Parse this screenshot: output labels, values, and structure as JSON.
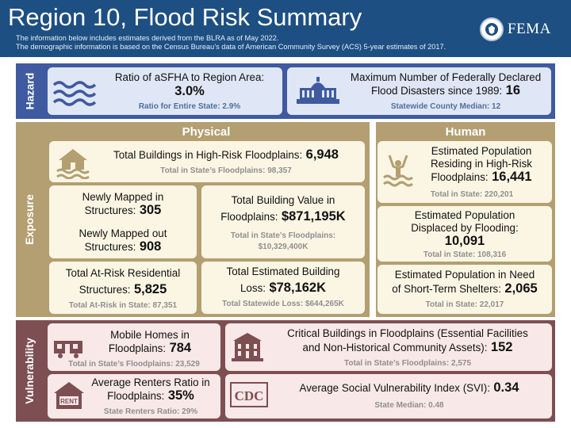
{
  "header": {
    "title": "Region 10, Flood Risk Summary",
    "note_1": "The information below includes estimates derived from the BLRA as of May 2022.",
    "note_2": "The demographic information is based on the Census Bureau’s data of American Community Survey (ACS) 5-year estimates of 2017.",
    "logo_text": "FEMA"
  },
  "hazard": {
    "label": "Hazard",
    "asfha": {
      "label": "Ratio of aSFHA to Region Area:",
      "value": "3.0%",
      "sub": "Ratio for Entire State: 2.9%"
    },
    "disasters": {
      "label_1": "Maximum Number of Federally Declared",
      "label_2": "Flood Disasters since 1989:",
      "value": "16",
      "sub": "Statewide County Median: 12"
    }
  },
  "exposure": {
    "label": "Exposure",
    "physical_heading": "Physical",
    "human_heading": "Human",
    "total_buildings": {
      "label": "Total Buildings in High-Risk Floodplains:",
      "value": "6,948",
      "sub": "Total in State’s Floodplains: 98,357"
    },
    "newly_mapped_in": {
      "label_1": "Newly Mapped in",
      "label_2": "Structures:",
      "value": "305"
    },
    "newly_mapped_out": {
      "label_1": "Newly Mapped out",
      "label_2": "Structures:",
      "value": "908"
    },
    "building_value": {
      "label_1": "Total Building Value in",
      "label_2": "Floodplains:",
      "value": "$871,195K",
      "sub_1": "Total in State’s Floodplains:",
      "sub_2": "$10,329,400K"
    },
    "at_risk_residential": {
      "label_1": "Total At-Risk Residential",
      "label_2": "Structures:",
      "value": "5,825",
      "sub": "Total At-Risk in State: 87,351"
    },
    "building_loss": {
      "label_1": "Total Estimated Building",
      "label_2": "Loss:",
      "value": "$78,162K",
      "sub": "Total Statewide Loss: $644,265K"
    },
    "pop_high_risk": {
      "label_1": "Estimated Population",
      "label_2": "Residing in High-Risk",
      "label_3": "Floodplains:",
      "value": "16,441",
      "sub": "Total in State: 220,201"
    },
    "pop_displaced": {
      "label_1": "Estimated Population",
      "label_2": "Displaced by Flooding:",
      "value": "10,091",
      "sub": "Total in State: 108,316"
    },
    "pop_shelters": {
      "label_1": "Estimated Population in Need",
      "label_2": "of Short-Term Shelters:",
      "value": "2,065",
      "sub": "Total in State: 22,017"
    }
  },
  "vulnerability": {
    "label": "Vulnerability",
    "mobile_homes": {
      "label_1": "Mobile Homes in",
      "label_2": "Floodplains:",
      "value": "784",
      "sub": "Total in State’s Floodplains: 23,529"
    },
    "critical_buildings": {
      "label_1": "Critical Buildings in Floodplains (Essential Facilities",
      "label_2": "and Non-Historical Community Assets):",
      "value": "152",
      "sub": "Total in State’s Floodplains: 2,575"
    },
    "renters": {
      "label_1": "Average Renters Ratio in",
      "label_2": "Floodplains:",
      "value": "35%",
      "sub": "State Renters Ratio: 29%",
      "icon_text": "RENT"
    },
    "svi": {
      "label": "Average Social Vulnerability Index (SVI):",
      "value": "0.34",
      "sub": "State Median: 0.48",
      "icon_text": "CDC"
    }
  },
  "colors": {
    "header": "#1d4f82",
    "hazard": "#3f5aa0",
    "hazard_card": "#dfe6f5",
    "exposure": "#b39f71",
    "exposure_card": "#fbf6e4",
    "vulnerability": "#7d4f52",
    "vulnerability_card": "#f9e8e8"
  }
}
